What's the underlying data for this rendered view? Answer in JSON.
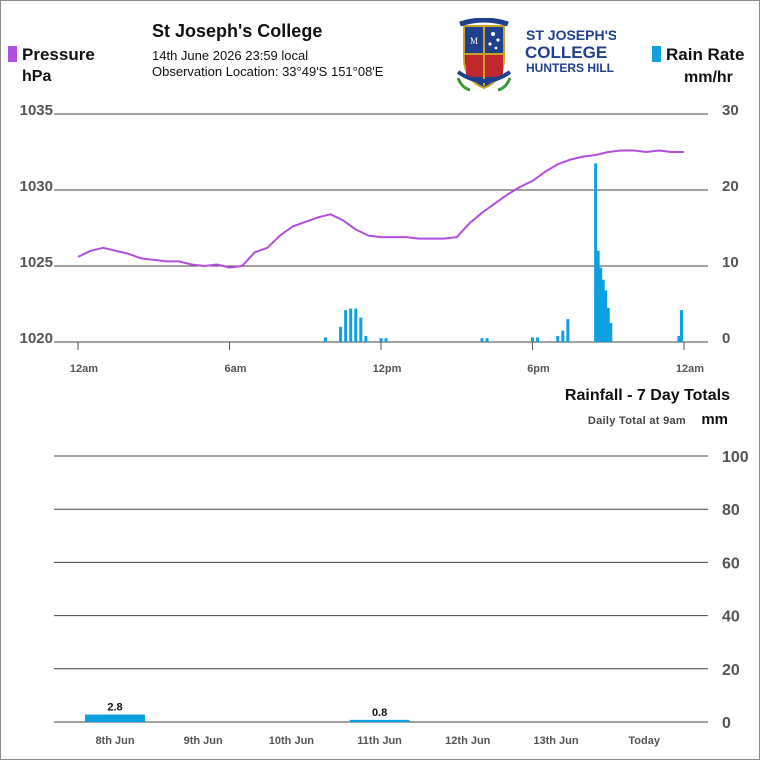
{
  "header": {
    "title": "St Joseph's College",
    "datetime": "14th June 2026  23:59 local",
    "location": "Observation Location: 33°49'S 151°08'E"
  },
  "logo": {
    "line1": "ST JOSEPH'S",
    "line2": "COLLEGE",
    "line3": "HUNTERS HILL",
    "shield_icon": "college-crest-icon"
  },
  "colors": {
    "pressure": "#b04fe0",
    "rain": "#0ea0e0",
    "grid": "#444444",
    "logo_navy": "#1f3f8f"
  },
  "chart_data": [
    {
      "type": "line",
      "name": "pressure-and-rain-rate",
      "legend_left": "Pressure",
      "unit_left": "hPa",
      "legend_right": "Rain Rate",
      "unit_right": "mm/hr",
      "x_ticks": [
        "12am",
        "6am",
        "12pm",
        "6pm",
        "12am"
      ],
      "x_range_hours": [
        0,
        24
      ],
      "y_left_range": [
        1020,
        1035
      ],
      "y_left_ticks": [
        "1035",
        "1030",
        "1025",
        "1020"
      ],
      "y_right_range": [
        0,
        30
      ],
      "y_right_ticks": [
        "30",
        "20",
        "10",
        "0"
      ],
      "grid": true,
      "series": [
        {
          "axis": "left",
          "x_hours": [
            0,
            0.5,
            1,
            1.5,
            2,
            2.5,
            3,
            3.5,
            4,
            4.5,
            5,
            5.5,
            6,
            6.5,
            7,
            7.5,
            8,
            8.5,
            9,
            9.5,
            10,
            10.5,
            11,
            11.5,
            12,
            12.5,
            13,
            13.5,
            14,
            14.5,
            15,
            15.5,
            16,
            16.5,
            17,
            17.5,
            18,
            18.5,
            19,
            19.5,
            20,
            20.5,
            21,
            21.5,
            22,
            22.5,
            23,
            23.5,
            24
          ],
          "values": [
            1025.6,
            1026.0,
            1026.2,
            1026.0,
            1025.8,
            1025.5,
            1025.4,
            1025.3,
            1025.3,
            1025.1,
            1025.0,
            1025.1,
            1024.9,
            1025.0,
            1025.9,
            1026.2,
            1027.0,
            1027.6,
            1027.9,
            1028.2,
            1028.4,
            1028.0,
            1027.4,
            1027.0,
            1026.9,
            1026.9,
            1026.9,
            1026.8,
            1026.8,
            1026.8,
            1026.9,
            1027.8,
            1028.5,
            1029.1,
            1029.7,
            1030.2,
            1030.6,
            1031.2,
            1031.7,
            1032.0,
            1032.2,
            1032.3,
            1032.5,
            1032.6,
            1032.6,
            1032.5,
            1032.6,
            1032.5,
            1032.5
          ]
        },
        {
          "axis": "right",
          "type": "bar",
          "x_hours": [
            9.8,
            10.4,
            10.6,
            10.8,
            11.0,
            11.2,
            11.4,
            12.0,
            12.2,
            16.0,
            16.2,
            18.0,
            18.2,
            19.0,
            19.2,
            19.4,
            20.5,
            20.6,
            20.7,
            20.8,
            20.9,
            21.0,
            21.1,
            23.8,
            23.9
          ],
          "values": [
            0.6,
            2.0,
            4.2,
            4.4,
            4.4,
            3.2,
            0.8,
            0.5,
            0.5,
            0.5,
            0.5,
            0.6,
            0.6,
            0.8,
            1.5,
            3.0,
            23.5,
            12.0,
            9.8,
            8.2,
            6.8,
            4.5,
            2.5,
            0.8,
            4.2
          ]
        }
      ]
    },
    {
      "type": "bar",
      "name": "rainfall-7-day",
      "title": "Rainfall - 7 Day Totals",
      "subtitle": "Daily Total at 9am",
      "ylabel": "mm",
      "categories": [
        "8th Jun",
        "9th Jun",
        "10th Jun",
        "11th Jun",
        "12th Jun",
        "13th Jun",
        "Today"
      ],
      "values": [
        2.8,
        0,
        0,
        0.8,
        0,
        0,
        0
      ],
      "data_labels": [
        "2.8",
        "",
        "",
        "0.8",
        "",
        "",
        ""
      ],
      "ylim": [
        0,
        100
      ],
      "y_ticks": [
        "100",
        "80",
        "60",
        "40",
        "20",
        "0"
      ],
      "grid": true
    }
  ]
}
